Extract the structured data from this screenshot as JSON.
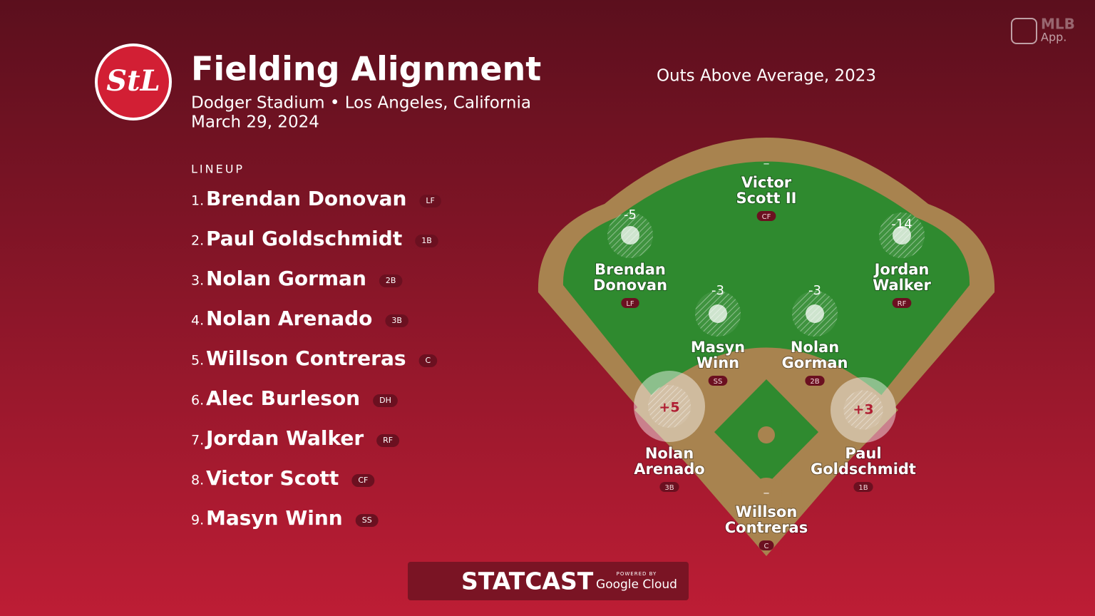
{
  "brand": {
    "logo_text": "StL",
    "app_line1": "MLB",
    "app_line2": "App."
  },
  "header": {
    "title": "Fielding Alignment",
    "subtitle": "Dodger Stadium • Los Angeles, California",
    "date": "March 29, 2024"
  },
  "metric_title": "Outs Above Average, 2023",
  "lineup": {
    "heading": "LINEUP",
    "players": [
      {
        "order": "1.",
        "name": "Brendan Donovan",
        "position": "LF"
      },
      {
        "order": "2.",
        "name": "Paul Goldschmidt",
        "position": "1B"
      },
      {
        "order": "3.",
        "name": "Nolan Gorman",
        "position": "2B"
      },
      {
        "order": "4.",
        "name": "Nolan Arenado",
        "position": "3B"
      },
      {
        "order": "5.",
        "name": "Willson Contreras",
        "position": "C"
      },
      {
        "order": "6.",
        "name": "Alec Burleson",
        "position": "DH"
      },
      {
        "order": "7.",
        "name": "Jordan Walker",
        "position": "RF"
      },
      {
        "order": "8.",
        "name": "Victor Scott",
        "position": "CF"
      },
      {
        "order": "9.",
        "name": "Masyn Winn",
        "position": "SS"
      }
    ]
  },
  "fielders": [
    {
      "position": "CF",
      "name_lines": [
        "Victor",
        "Scott II"
      ],
      "oaa": "–"
    },
    {
      "position": "LF",
      "name_lines": [
        "Brendan",
        "Donovan"
      ],
      "oaa": "-5"
    },
    {
      "position": "RF",
      "name_lines": [
        "Jordan",
        "Walker"
      ],
      "oaa": "-14"
    },
    {
      "position": "SS",
      "name_lines": [
        "Masyn",
        "Winn"
      ],
      "oaa": "-3"
    },
    {
      "position": "2B",
      "name_lines": [
        "Nolan",
        "Gorman"
      ],
      "oaa": "-3"
    },
    {
      "position": "3B",
      "name_lines": [
        "Nolan",
        "Arenado"
      ],
      "oaa": "+5"
    },
    {
      "position": "1B",
      "name_lines": [
        "Paul",
        "Goldschmidt"
      ],
      "oaa": "+3"
    },
    {
      "position": "C",
      "name_lines": [
        "Willson",
        "Contreras"
      ],
      "oaa": "–"
    }
  ],
  "footer": {
    "brand": "STATCAST",
    "powered": "POWERED BY",
    "partner": "Google Cloud"
  }
}
